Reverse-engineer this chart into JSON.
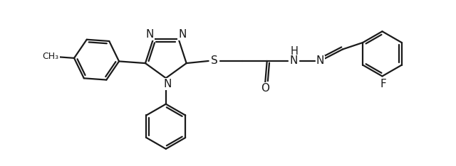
{
  "background_color": "#ffffff",
  "line_color": "#1a1a1a",
  "line_width": 1.6,
  "figsize": [
    6.4,
    2.34
  ],
  "dpi": 100,
  "xlim": [
    0,
    10
  ],
  "ylim": [
    0,
    3.66
  ]
}
